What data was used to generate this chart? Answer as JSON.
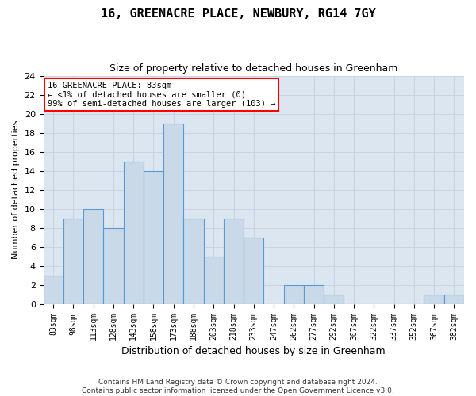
{
  "title": "16, GREENACRE PLACE, NEWBURY, RG14 7GY",
  "subtitle": "Size of property relative to detached houses in Greenham",
  "xlabel": "Distribution of detached houses by size in Greenham",
  "ylabel": "Number of detached properties",
  "categories": [
    "83sqm",
    "98sqm",
    "113sqm",
    "128sqm",
    "143sqm",
    "158sqm",
    "173sqm",
    "188sqm",
    "203sqm",
    "218sqm",
    "233sqm",
    "247sqm",
    "262sqm",
    "277sqm",
    "292sqm",
    "307sqm",
    "322sqm",
    "337sqm",
    "352sqm",
    "367sqm",
    "382sqm"
  ],
  "values": [
    3,
    9,
    10,
    8,
    15,
    14,
    19,
    9,
    5,
    9,
    7,
    0,
    2,
    2,
    1,
    0,
    0,
    0,
    0,
    1,
    1
  ],
  "bar_color": "#c9d9e8",
  "bar_edge_color": "#5b9bd5",
  "ylim": [
    0,
    24
  ],
  "yticks": [
    0,
    2,
    4,
    6,
    8,
    10,
    12,
    14,
    16,
    18,
    20,
    22,
    24
  ],
  "annotation_box_text": "16 GREENACRE PLACE: 83sqm\n← <1% of detached houses are smaller (0)\n99% of semi-detached houses are larger (103) →",
  "annotation_fontsize": 7.5,
  "grid_color": "#c8d4e3",
  "bg_color": "#dce6f0",
  "footer_line1": "Contains HM Land Registry data © Crown copyright and database right 2024.",
  "footer_line2": "Contains public sector information licensed under the Open Government Licence v3.0."
}
